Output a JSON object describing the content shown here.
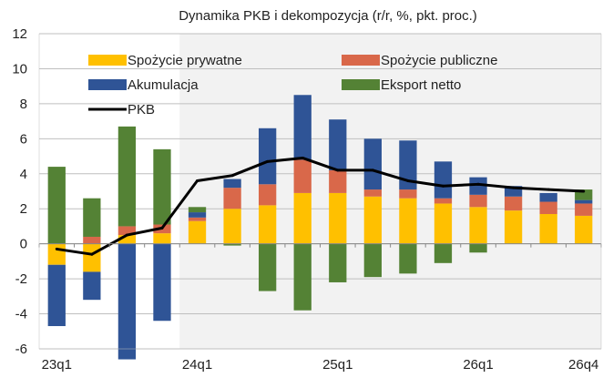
{
  "chart_data": {
    "type": "bar",
    "stacked": true,
    "title": "Dynamika PKB i dekompozycja (r/r, %, pkt. proc.)",
    "xlabel": "",
    "ylabel": "",
    "ylim": [
      -6,
      12
    ],
    "yticks": [
      "12",
      "10",
      "8",
      "6",
      "4",
      "2",
      "0",
      "-2",
      "-4",
      "-6"
    ],
    "ytick_values": [
      12,
      10,
      8,
      6,
      4,
      2,
      0,
      -2,
      -4,
      -6
    ],
    "categories": [
      "23q1",
      "23q2",
      "23q3",
      "23q4",
      "24q1",
      "24q2",
      "24q3",
      "24q4",
      "25q1",
      "25q2",
      "25q3",
      "25q4",
      "26q1",
      "26q2",
      "26q3",
      "26q4"
    ],
    "xtick_labels": [
      {
        "index": 0,
        "label": "23q1"
      },
      {
        "index": 4,
        "label": "24q1"
      },
      {
        "index": 8,
        "label": "25q1"
      },
      {
        "index": 12,
        "label": "26q1"
      },
      {
        "index": 15,
        "label": "26q4"
      }
    ],
    "forecast_start_index": 4,
    "colors": {
      "consumption_private": "#FFC000",
      "consumption_public": "#D9684A",
      "investment": "#2F5496",
      "net_exports": "#548235",
      "gdp": "#000000",
      "forecast_shade": "#F2F2F2",
      "grid": "#BFBFBF"
    },
    "series": [
      {
        "key": "consumption_private",
        "name": "Spożycie prywatne",
        "values": [
          -1.2,
          -1.6,
          0.5,
          0.6,
          1.3,
          2.0,
          2.2,
          2.9,
          2.9,
          2.7,
          2.6,
          2.3,
          2.1,
          1.9,
          1.7,
          1.6
        ]
      },
      {
        "key": "consumption_public",
        "name": "Spożycie publiczne",
        "values": [
          0.0,
          0.4,
          0.5,
          0.5,
          0.2,
          1.2,
          1.2,
          1.9,
          1.3,
          0.4,
          0.5,
          0.3,
          0.7,
          0.8,
          0.7,
          0.7
        ]
      },
      {
        "key": "investment",
        "name": "Akumulacja",
        "values": [
          -3.5,
          -1.6,
          -6.6,
          -4.4,
          0.3,
          0.5,
          3.2,
          3.7,
          2.9,
          2.9,
          2.8,
          2.1,
          1.0,
          0.6,
          0.5,
          0.2
        ]
      },
      {
        "key": "net_exports",
        "name": "Eksport netto",
        "values": [
          4.4,
          2.2,
          5.7,
          4.3,
          0.3,
          -0.1,
          -2.7,
          -3.8,
          -2.2,
          -1.9,
          -1.7,
          -1.1,
          -0.5,
          0.0,
          0.0,
          0.6
        ]
      },
      {
        "key": "gdp",
        "name": "PKB",
        "type": "line",
        "values": [
          -0.3,
          -0.6,
          0.5,
          0.9,
          3.6,
          3.9,
          4.7,
          4.9,
          4.2,
          4.2,
          3.6,
          3.3,
          3.4,
          3.2,
          3.1,
          3.0
        ]
      }
    ],
    "legend": [
      {
        "key": "consumption_private",
        "label": "Spożycie prywatne"
      },
      {
        "key": "consumption_public",
        "label": "Spożycie publiczne"
      },
      {
        "key": "investment",
        "label": "Akumulacja"
      },
      {
        "key": "net_exports",
        "label": "Eksport netto"
      },
      {
        "key": "gdp",
        "label": "PKB"
      }
    ],
    "legend_position": "top-left"
  }
}
